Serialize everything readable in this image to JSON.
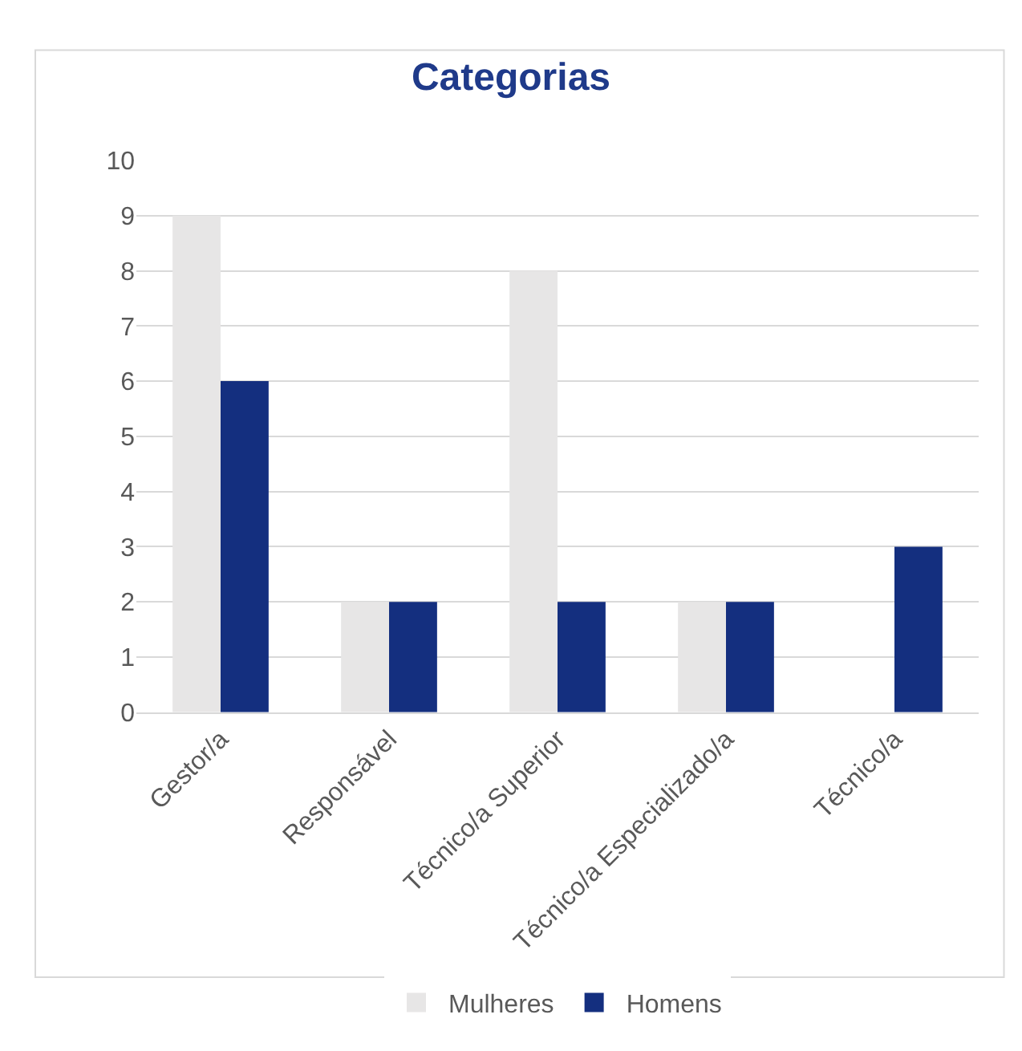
{
  "chart_data": {
    "type": "bar",
    "title": "Categorias",
    "categories": [
      "Gestor/a",
      "Responsável",
      "Técnico/a Superior",
      "Técnico/a Especializado/a",
      "Técnico/a"
    ],
    "series": [
      {
        "name": "Mulheres",
        "color": "#e7e6e6",
        "values": [
          9,
          2,
          8,
          2,
          0
        ]
      },
      {
        "name": "Homens",
        "color": "#142f7f",
        "values": [
          6,
          2,
          2,
          2,
          3
        ]
      }
    ],
    "ylim": [
      0,
      10
    ],
    "yticks": [
      0,
      1,
      2,
      3,
      4,
      5,
      6,
      7,
      8,
      9,
      10
    ],
    "grid": "y",
    "legend": "bottom"
  }
}
